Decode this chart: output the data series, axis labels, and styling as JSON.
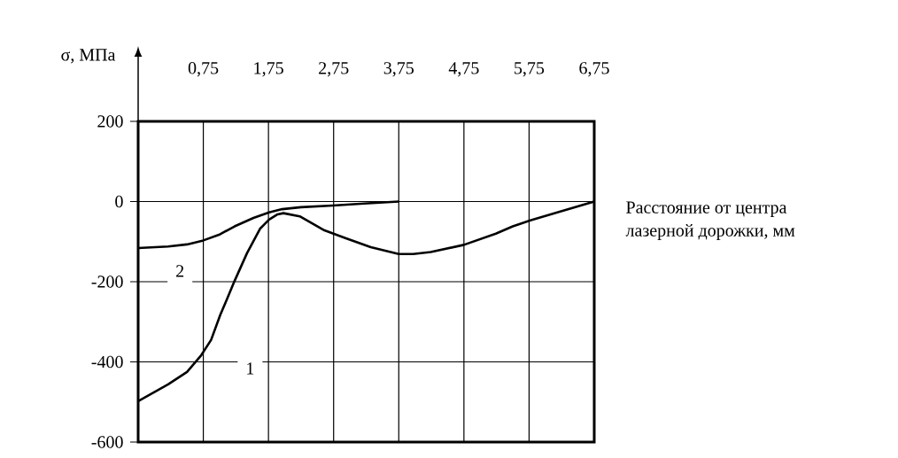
{
  "chart_data": {
    "type": "line",
    "xlabel": "Расстояние от центра\nлазерной дорожки, мм",
    "ylabel": "σ, МПа",
    "xlim": [
      -0.25,
      6.75
    ],
    "ylim": [
      -600,
      200
    ],
    "xticks": [
      {
        "value": 0.75,
        "label": "0,75"
      },
      {
        "value": 1.75,
        "label": "1,75"
      },
      {
        "value": 2.75,
        "label": "2,75"
      },
      {
        "value": 3.75,
        "label": "3,75"
      },
      {
        "value": 4.75,
        "label": "4,75"
      },
      {
        "value": 5.75,
        "label": "5,75"
      },
      {
        "value": 6.75,
        "label": "6,75"
      }
    ],
    "yticks": [
      -600,
      -400,
      -200,
      0,
      200
    ],
    "grid": true,
    "series": [
      {
        "name": "1",
        "color": "#000000",
        "x": [
          -0.25,
          0.21,
          0.5,
          0.72,
          0.87,
          1.01,
          1.11,
          1.23,
          1.42,
          1.62,
          1.76,
          1.89,
          1.98,
          2.23,
          2.61,
          2.93,
          3.32,
          3.75,
          3.97,
          4.24,
          4.75,
          5.24,
          5.5,
          5.77,
          6.23,
          6.75
        ],
        "values": [
          -498,
          -456,
          -425,
          -383,
          -345,
          -283,
          -245,
          -198,
          -129,
          -68,
          -45,
          -32,
          -29,
          -37,
          -72,
          -91,
          -114,
          -131,
          -131,
          -126,
          -108,
          -80,
          -62,
          -47,
          -25,
          0
        ]
      },
      {
        "name": "2",
        "color": "#000000",
        "x": [
          -0.25,
          0.21,
          0.5,
          0.75,
          0.99,
          1.23,
          1.52,
          1.76,
          1.96,
          2.25,
          2.74,
          3.22,
          3.75
        ],
        "values": [
          -116,
          -112,
          -107,
          -97,
          -83,
          -62,
          -41,
          -27,
          -19,
          -14,
          -10,
          -5,
          0
        ]
      }
    ]
  }
}
